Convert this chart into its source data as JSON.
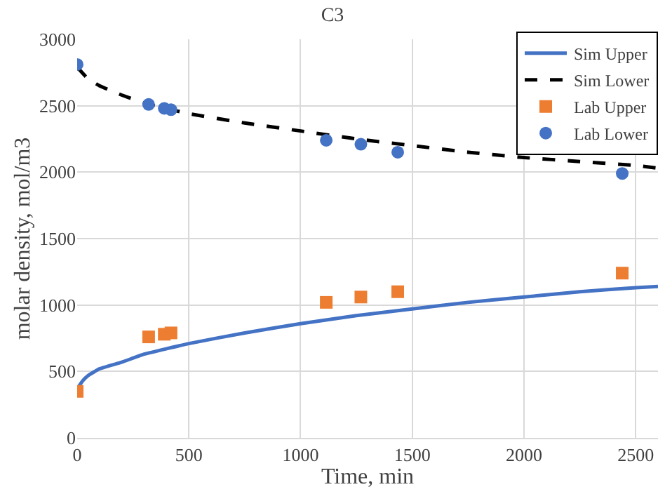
{
  "chart_data": {
    "type": "line",
    "title": "C3",
    "xlabel": "Time, min",
    "ylabel": "molar density, mol/m3",
    "xlim": [
      0,
      2600
    ],
    "xticks": [
      0,
      500,
      1000,
      1500,
      2000,
      2500
    ],
    "ylim": [
      0,
      3000
    ],
    "yticks": [
      0,
      500,
      1000,
      1500,
      2000,
      2500,
      3000
    ],
    "grid": true,
    "legend": "top right",
    "series": [
      {
        "name": "Sim Upper",
        "color": "#4472c4",
        "line_style": "solid",
        "marker": "none",
        "x": [
          0,
          25,
          50,
          100,
          200,
          300,
          500,
          750,
          1000,
          1250,
          1500,
          1750,
          2000,
          2250,
          2500,
          2600
        ],
        "values": [
          370,
          430,
          470,
          520,
          570,
          630,
          710,
          790,
          860,
          920,
          970,
          1020,
          1060,
          1100,
          1130,
          1140
        ]
      },
      {
        "name": "Sim Lower",
        "color": "#000000",
        "line_style": "dashed",
        "marker": "none",
        "x": [
          0,
          50,
          100,
          200,
          300,
          500,
          750,
          1000,
          1250,
          1500,
          1750,
          2000,
          2250,
          2500,
          2600
        ],
        "values": [
          2790,
          2700,
          2650,
          2580,
          2520,
          2440,
          2370,
          2310,
          2250,
          2200,
          2150,
          2110,
          2080,
          2050,
          2030
        ]
      },
      {
        "name": "Lab Upper",
        "type": "scatter",
        "color": "#ed7d31",
        "marker": "square",
        "x": [
          0,
          320,
          390,
          420,
          1115,
          1270,
          1435,
          2440
        ],
        "values": [
          350,
          760,
          780,
          790,
          1020,
          1060,
          1100,
          1240
        ]
      },
      {
        "name": "Lab Lower",
        "type": "scatter",
        "color": "#4472c4",
        "marker": "circle",
        "x": [
          0,
          320,
          390,
          420,
          1115,
          1270,
          1435,
          2440
        ],
        "values": [
          2810,
          2510,
          2480,
          2470,
          2240,
          2210,
          2150,
          1990
        ]
      }
    ]
  }
}
